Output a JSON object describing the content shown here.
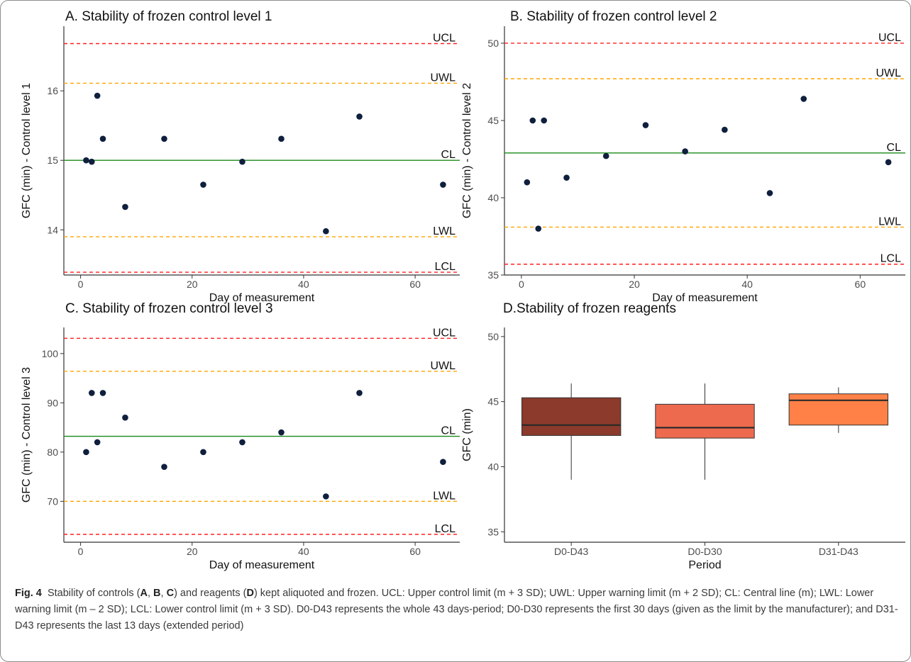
{
  "figure_label": "Fig. 4",
  "caption_parts": {
    "p1": "Stability of controls (",
    "a": "A",
    "s1": ", ",
    "b": "B",
    "s2": ", ",
    "c": "C",
    "p2": ") and reagents (",
    "d": "D",
    "p3": ") kept aliquoted and frozen. UCL: Upper control limit (m + 3 SD); UWL: Upper warning limit (m + 2 SD); CL: Central line (m); LWL: Lower warning limit (m – 2 SD); LCL: Lower control limit (m + 3 SD). D0-D43 represents the whole 43 days-period; D0-D30 represents the first 30 days (given as the limit by the manufacturer); and D31-D43 represents the last 13 days (extended period)"
  },
  "colors": {
    "ucl": "#ff1f1f",
    "uwl": "#ffa500",
    "cl": "#1a8a1a",
    "point": "#0f1f3d",
    "axis": "#333333",
    "tick_text": "#4d4d4d",
    "box_edge": "#333333"
  },
  "chart_data": [
    {
      "type": "scatter",
      "title": "A. Stability of frozen control level 1",
      "xlabel": "Day of measurement",
      "ylabel": "GFC (min) - Control level 1",
      "xlim": [
        -3,
        68
      ],
      "ylim": [
        13.35,
        16.93
      ],
      "xticks": [
        0,
        20,
        40,
        60
      ],
      "yticks": [
        14,
        15,
        16
      ],
      "x": [
        1,
        2,
        3,
        4,
        8,
        15,
        22,
        29,
        36,
        44,
        50,
        65
      ],
      "y": [
        15.0,
        14.98,
        15.93,
        15.31,
        14.33,
        15.31,
        14.65,
        14.98,
        15.31,
        13.98,
        15.63,
        14.65
      ],
      "reference_lines": [
        {
          "label": "UCL",
          "value": 16.68,
          "style": "ucl"
        },
        {
          "label": "UWL",
          "value": 16.11,
          "style": "uwl"
        },
        {
          "label": "CL",
          "value": 15.0,
          "style": "cl"
        },
        {
          "label": "LWL",
          "value": 13.9,
          "style": "uwl"
        },
        {
          "label": "LCL",
          "value": 13.39,
          "style": "ucl"
        }
      ],
      "grid": false
    },
    {
      "type": "scatter",
      "title": "B. Stability of frozen control level 2",
      "xlabel": "Day of measurement",
      "ylabel": "GFC (min) - Control level 2",
      "xlim": [
        -3,
        68
      ],
      "ylim": [
        35.0,
        51.1
      ],
      "xticks": [
        0,
        20,
        40,
        60
      ],
      "yticks": [
        35,
        40,
        45,
        50
      ],
      "x": [
        1,
        2,
        3,
        4,
        8,
        15,
        22,
        29,
        36,
        44,
        50,
        65
      ],
      "y": [
        41.0,
        45.0,
        38.0,
        45.0,
        41.3,
        42.7,
        44.7,
        43.0,
        44.4,
        40.3,
        46.4,
        42.3
      ],
      "reference_lines": [
        {
          "label": "UCL",
          "value": 50.0,
          "style": "ucl"
        },
        {
          "label": "UWL",
          "value": 47.7,
          "style": "uwl"
        },
        {
          "label": "CL",
          "value": 42.9,
          "style": "cl"
        },
        {
          "label": "LWL",
          "value": 38.1,
          "style": "uwl"
        },
        {
          "label": "LCL",
          "value": 35.7,
          "style": "ucl"
        }
      ],
      "grid": false
    },
    {
      "type": "scatter",
      "title": "C. Stability of frozen control level 3",
      "xlabel": "Day of measurement",
      "ylabel": "GFC (min) - Control level 3",
      "xlim": [
        -3,
        68
      ],
      "ylim": [
        61.7,
        105.3
      ],
      "xticks": [
        0,
        20,
        40,
        60
      ],
      "yticks": [
        70,
        80,
        90,
        100
      ],
      "x": [
        1,
        2,
        3,
        4,
        8,
        15,
        22,
        29,
        36,
        44,
        50,
        65
      ],
      "y": [
        80.0,
        92.0,
        82.0,
        92.0,
        87.0,
        77.0,
        80.0,
        82.0,
        84.0,
        71.0,
        92.0,
        78.0
      ],
      "reference_lines": [
        {
          "label": "UCL",
          "value": 103.1,
          "style": "ucl"
        },
        {
          "label": "UWL",
          "value": 96.4,
          "style": "uwl"
        },
        {
          "label": "CL",
          "value": 83.2,
          "style": "cl"
        },
        {
          "label": "LWL",
          "value": 70.0,
          "style": "uwl"
        },
        {
          "label": "LCL",
          "value": 63.3,
          "style": "ucl"
        }
      ],
      "grid": false
    },
    {
      "type": "box",
      "title": "D.Stability of frozen reagents",
      "xlabel": "Period",
      "ylabel": "GFC (min)",
      "ylim": [
        34.2,
        50.7
      ],
      "yticks": [
        35,
        40,
        45,
        50
      ],
      "categories": [
        "D0-D43",
        "D0-D30",
        "D31-D43"
      ],
      "boxes": [
        {
          "category": "D0-D43",
          "min": 39.0,
          "q1": 42.4,
          "median": 43.2,
          "q3": 45.3,
          "max": 46.4,
          "fill": "#8b3a2b"
        },
        {
          "category": "D0-D30",
          "min": 39.0,
          "q1": 42.2,
          "median": 43.0,
          "q3": 44.8,
          "max": 46.4,
          "fill": "#ed6a4f"
        },
        {
          "category": "D31-D43",
          "min": 42.6,
          "q1": 43.2,
          "median": 45.1,
          "q3": 45.6,
          "max": 46.1,
          "fill": "#ff8147"
        }
      ],
      "grid": false
    }
  ]
}
